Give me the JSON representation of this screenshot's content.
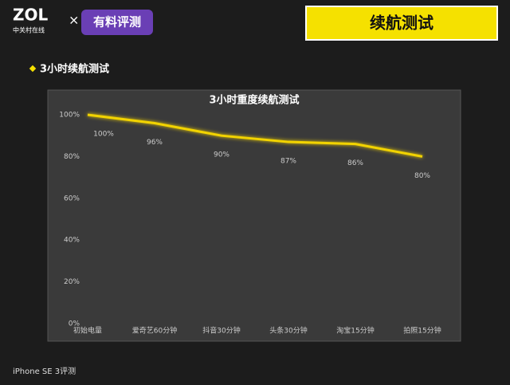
{
  "header": {
    "brand": "ZOL",
    "brand_sub": "中关村在线",
    "separator": "×",
    "partner": "有料评测",
    "section": "续航测试"
  },
  "bullet": "3小时续航测试",
  "footer": "iPhone SE 3评测",
  "chart_data": {
    "type": "line",
    "title": "3小时重度续航测试",
    "categories": [
      "初始电量",
      "爱奇艺60分钟",
      "抖音30分钟",
      "头条30分钟",
      "淘宝15分钟",
      "拍照15分钟"
    ],
    "values": [
      100,
      96,
      90,
      87,
      86,
      80
    ],
    "value_labels": [
      "100%",
      "96%",
      "90%",
      "87%",
      "86%",
      "80%"
    ],
    "color": "#f2d300",
    "ylim": [
      0,
      100
    ],
    "yticks": [
      {
        "value": 0,
        "label": "0%"
      },
      {
        "value": 20,
        "label": "20%"
      },
      {
        "value": 40,
        "label": "40%"
      },
      {
        "value": 60,
        "label": "60%"
      },
      {
        "value": 80,
        "label": "80%"
      },
      {
        "value": 100,
        "label": "100%"
      }
    ],
    "grid": false
  }
}
